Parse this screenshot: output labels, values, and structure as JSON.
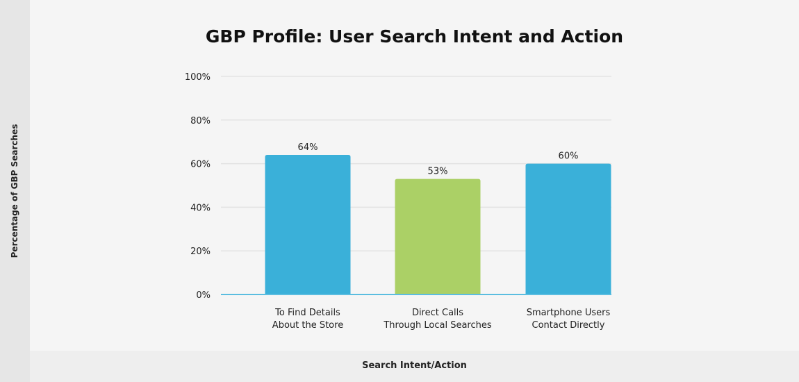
{
  "chart_data": {
    "type": "bar",
    "title": "GBP Profile: User Search Intent and Action",
    "xlabel": "Search Intent/Action",
    "ylabel": "Percentage of GBP Searches",
    "categories": [
      [
        "To Find Details",
        "About the Store"
      ],
      [
        "Direct Calls",
        "Through Local Searches"
      ],
      [
        "Smartphone Users",
        "Contact Directly"
      ]
    ],
    "values": [
      64,
      53,
      60
    ],
    "data_labels": [
      "64%",
      "53%",
      "60%"
    ],
    "colors": [
      "#3ab0d9",
      "#abd066",
      "#3ab0d9"
    ],
    "ylim": [
      0,
      100
    ],
    "yticks": [
      0,
      20,
      40,
      60,
      80,
      100
    ],
    "ytick_labels": [
      "0%",
      "20%",
      "40%",
      "60%",
      "80%",
      "100%"
    ],
    "grid": true,
    "legend": "none"
  }
}
